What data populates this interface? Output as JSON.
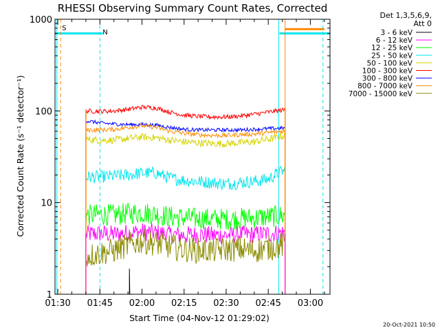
{
  "chart_data": {
    "type": "line",
    "title": "RHESSI Observing Summary Count Rates, Corrected",
    "xlabel": "Start Time (04-Nov-12 01:29:02)",
    "ylabel": "Corrected Count Rate (s⁻¹ detector⁻¹)",
    "yscale": "log",
    "xlim": [
      "01:29",
      "03:07"
    ],
    "ylim": [
      1,
      1000
    ],
    "grid": false,
    "legend_position": "top-right outside plot",
    "x_ticks": [
      "01:30",
      "01:45",
      "02:00",
      "02:15",
      "02:30",
      "02:45",
      "03:00"
    ],
    "y_ticks": [
      "1",
      "10",
      "100",
      "1000"
    ],
    "legend_header": [
      "Det 1,3,5,6,9,",
      "Att 0"
    ],
    "footer_timestamp": "20-Oct-2021 10:50",
    "flags": [
      {
        "label": "S",
        "color": "#ff8c00"
      },
      {
        "label": "N",
        "color": "#00e5ee"
      }
    ],
    "bars": [
      {
        "name": "night",
        "color": "#00e5ee",
        "segments": [
          [
            "01:29",
            "01:46"
          ],
          [
            "02:49",
            "03:07"
          ]
        ],
        "level": 700
      },
      {
        "name": "saa",
        "color": "#ff8c00",
        "segments": [
          [
            "02:51",
            "03:05"
          ]
        ],
        "level": 780
      }
    ],
    "vlines": [
      {
        "t": "01:29:40",
        "color": "#00e5ee",
        "style": "solid"
      },
      {
        "t": "01:31",
        "color": "#ff8c00",
        "style": "dashed"
      },
      {
        "t": "01:45",
        "color": "#00e5ee",
        "style": "dashed"
      },
      {
        "t": "02:48.7",
        "color": "#00e5ee",
        "style": "solid"
      },
      {
        "t": "02:51",
        "color": "#ff8c00",
        "style": "solid"
      },
      {
        "t": "03:04.5",
        "color": "#00e5ee",
        "style": "dashed"
      }
    ],
    "data_window": [
      "01:40",
      "02:51"
    ],
    "series": [
      {
        "name": "3 - 6 keV",
        "color": "#000000",
        "points": [
          [
            "01:55:30",
            1.0
          ],
          [
            "01:55:30",
            1.9
          ],
          [
            "01:55:40",
            1.0
          ]
        ]
      },
      {
        "name": "6 - 12 keV",
        "color": "#ff00ff",
        "x": [
          "01:40",
          "01:45",
          "01:50",
          "01:55",
          "02:00",
          "02:05",
          "02:10",
          "02:15",
          "02:20",
          "02:25",
          "02:30",
          "02:35",
          "02:40",
          "02:45",
          "02:50"
        ],
        "values": [
          4.5,
          4.6,
          4.5,
          4.7,
          4.8,
          4.7,
          4.5,
          4.4,
          4.5,
          4.4,
          4.4,
          4.5,
          4.5,
          4.6,
          4.7
        ],
        "noise": 0.1
      },
      {
        "name": "12 - 25 keV",
        "color": "#00ff00",
        "x": [
          "01:40",
          "01:45",
          "01:50",
          "01:55",
          "02:00",
          "02:05",
          "02:10",
          "02:15",
          "02:20",
          "02:25",
          "02:30",
          "02:35",
          "02:40",
          "02:45",
          "02:50"
        ],
        "values": [
          7.2,
          7.4,
          7.3,
          7.6,
          7.8,
          7.5,
          7.0,
          6.8,
          6.7,
          6.6,
          6.6,
          6.7,
          6.8,
          7.0,
          7.2
        ],
        "noise": 0.12
      },
      {
        "name": "25 - 50 keV",
        "color": "#00e5ee",
        "x": [
          "01:40",
          "01:45",
          "01:50",
          "01:55",
          "02:00",
          "02:05",
          "02:10",
          "02:15",
          "02:20",
          "02:25",
          "02:30",
          "02:35",
          "02:40",
          "02:45",
          "02:50"
        ],
        "values": [
          19,
          19,
          19.5,
          20,
          21,
          21,
          18.5,
          17.5,
          17,
          16.5,
          16,
          16.5,
          17,
          18,
          22
        ],
        "noise": 0.07
      },
      {
        "name": "50 - 100 keV",
        "color": "#d4d400",
        "x": [
          "01:40",
          "01:45",
          "01:50",
          "01:55",
          "02:00",
          "02:05",
          "02:10",
          "02:15",
          "02:20",
          "02:25",
          "02:30",
          "02:35",
          "02:40",
          "02:45",
          "02:50"
        ],
        "values": [
          49,
          48,
          48,
          50,
          52,
          51,
          48,
          46,
          45,
          44,
          44,
          45,
          46,
          49,
          53
        ],
        "noise": 0.04
      },
      {
        "name": "100 - 300 keV",
        "color": "#ff0000",
        "x": [
          "01:40",
          "01:45",
          "01:50",
          "01:55",
          "02:00",
          "02:05",
          "02:10",
          "02:15",
          "02:20",
          "02:25",
          "02:30",
          "02:35",
          "02:40",
          "02:45",
          "02:50"
        ],
        "values": [
          100,
          99,
          100,
          104,
          110,
          108,
          97,
          90,
          87,
          86,
          86,
          88,
          92,
          97,
          102
        ],
        "noise": 0.025
      },
      {
        "name": "300 - 800 keV",
        "color": "#0000ff",
        "x": [
          "01:40",
          "01:45",
          "01:50",
          "01:55",
          "02:00",
          "02:05",
          "02:10",
          "02:15",
          "02:20",
          "02:25",
          "02:30",
          "02:35",
          "02:40",
          "02:45",
          "02:50"
        ],
        "values": [
          78,
          74,
          72,
          71,
          71,
          70,
          66,
          63,
          62,
          62,
          62,
          62,
          63,
          64,
          65
        ],
        "noise": 0.02
      },
      {
        "name": "800 - 7000 keV",
        "color": "#ff8c00",
        "x": [
          "01:40",
          "01:45",
          "01:50",
          "01:55",
          "02:00",
          "02:05",
          "02:10",
          "02:15",
          "02:20",
          "02:25",
          "02:30",
          "02:35",
          "02:40",
          "02:45",
          "02:50"
        ],
        "values": [
          62,
          62,
          63,
          66,
          69,
          66,
          60,
          57,
          55,
          54,
          54,
          55,
          56,
          58,
          60
        ],
        "noise": 0.025
      },
      {
        "name": "7000 - 15000 keV",
        "color": "#8b8b00",
        "x": [
          "01:40",
          "01:45",
          "01:50",
          "01:55",
          "02:00",
          "02:05",
          "02:10",
          "02:15",
          "02:20",
          "02:25",
          "02:30",
          "02:35",
          "02:40",
          "02:45",
          "02:50"
        ],
        "values": [
          2.6,
          2.8,
          3.0,
          3.4,
          3.8,
          3.6,
          3.3,
          3.1,
          3.0,
          3.0,
          3.1,
          3.1,
          3.0,
          3.2,
          3.4
        ],
        "noise": 0.14
      }
    ]
  }
}
